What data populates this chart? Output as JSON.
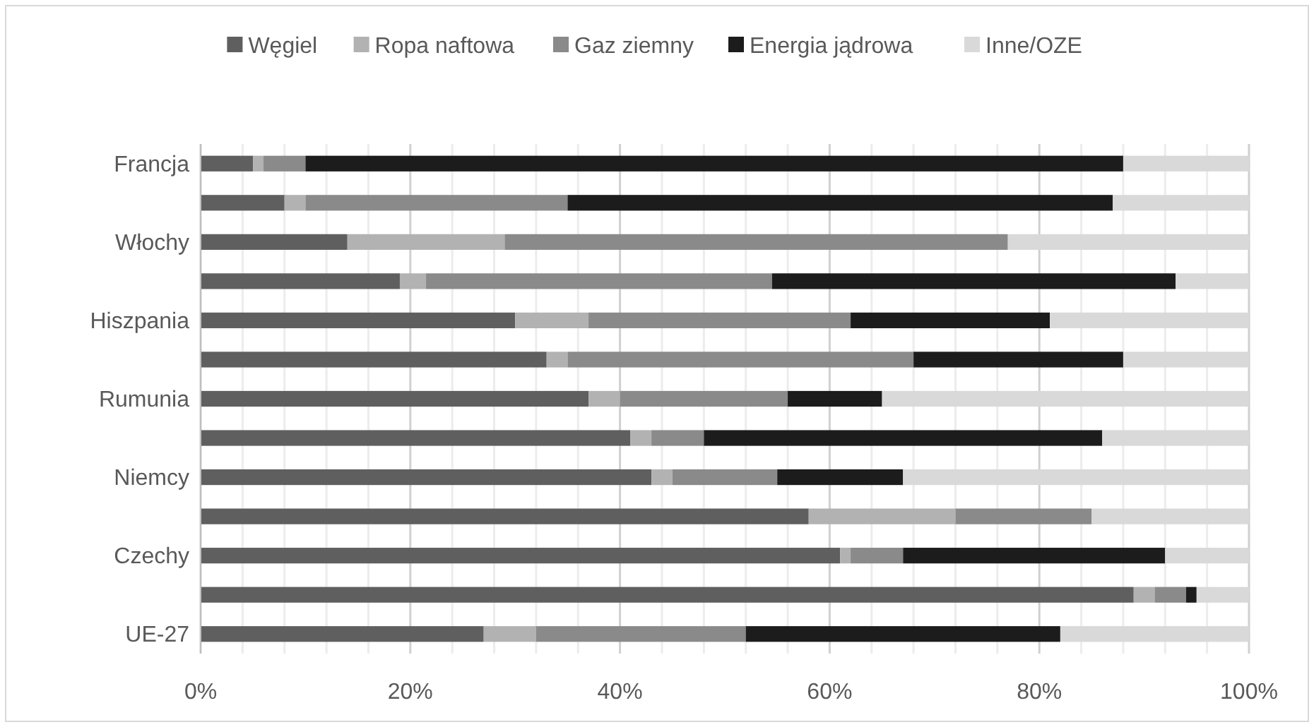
{
  "chart_data": {
    "type": "bar",
    "orientation": "horizontal",
    "stacked": true,
    "categories": [
      "Francja",
      null,
      "Włochy",
      null,
      "Hiszpania",
      null,
      "Rumunia",
      null,
      "Niemcy",
      null,
      "Czechy",
      null,
      "UE-27"
    ],
    "series": [
      {
        "name": "Węgiel",
        "color": "#5f5f5f",
        "values": [
          5,
          8,
          14,
          19,
          30,
          33,
          37,
          41,
          43,
          58,
          61,
          89,
          27
        ]
      },
      {
        "name": "Ropa naftowa",
        "color": "#b2b2b2",
        "values": [
          1,
          2,
          15,
          2.5,
          7,
          2,
          3,
          2,
          2,
          14,
          1,
          2,
          5
        ]
      },
      {
        "name": "Gaz ziemny",
        "color": "#8a8a8a",
        "values": [
          4,
          25,
          48,
          33,
          25,
          33,
          16,
          5,
          10,
          13,
          5,
          3,
          20
        ]
      },
      {
        "name": "Energia jądrowa",
        "color": "#1c1c1c",
        "values": [
          78,
          52,
          0,
          38.5,
          19,
          20,
          9,
          38,
          12,
          0,
          25,
          1,
          30
        ]
      },
      {
        "name": "Inne/OZE",
        "color": "#d9d9d9",
        "values": [
          12,
          13,
          23,
          7,
          19,
          12,
          35,
          14,
          33,
          15,
          8,
          5,
          18
        ]
      }
    ],
    "xlim": [
      0,
      100
    ],
    "xticks": [
      {
        "value": 0,
        "label": "0%"
      },
      {
        "value": 4,
        "label": null
      },
      {
        "value": 8,
        "label": null
      },
      {
        "value": 12,
        "label": null
      },
      {
        "value": 16,
        "label": null
      },
      {
        "value": 20,
        "label": "20%"
      },
      {
        "value": 24,
        "label": null
      },
      {
        "value": 28,
        "label": null
      },
      {
        "value": 32,
        "label": null
      },
      {
        "value": 36,
        "label": null
      },
      {
        "value": 40,
        "label": "40%"
      },
      {
        "value": 44,
        "label": null
      },
      {
        "value": 48,
        "label": null
      },
      {
        "value": 52,
        "label": null
      },
      {
        "value": 56,
        "label": null
      },
      {
        "value": 60,
        "label": "60%"
      },
      {
        "value": 64,
        "label": null
      },
      {
        "value": 68,
        "label": null
      },
      {
        "value": 72,
        "label": null
      },
      {
        "value": 76,
        "label": null
      },
      {
        "value": 80,
        "label": "80%"
      },
      {
        "value": 84,
        "label": null
      },
      {
        "value": 88,
        "label": null
      },
      {
        "value": 92,
        "label": null
      },
      {
        "value": 96,
        "label": null
      },
      {
        "value": 100,
        "label": "100%"
      }
    ],
    "grid": "x",
    "legend": "top"
  }
}
